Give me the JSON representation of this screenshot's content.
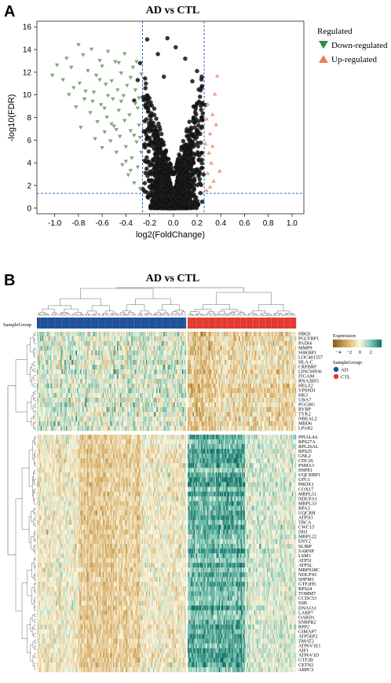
{
  "panel_a": {
    "letter": "A",
    "title": "AD vs CTL",
    "legend_title": "Regulated",
    "legend_items": [
      "Down-regulated",
      "Up-regulated"
    ],
    "colors": {
      "down": "#7fa878",
      "up": "#ef9e83",
      "ns": "#000000",
      "down_legend": "#2e8b3e",
      "up_legend": "#ef7d5c",
      "threshold": "#1f5fae"
    }
  },
  "panel_b": {
    "letter": "B",
    "title": "AD vs CTL",
    "annotation_label": "SampleGroup",
    "legend_expression_title": "Expression",
    "legend_expression_ticks": [
      "-4",
      "-2",
      "0",
      "2"
    ],
    "legend_group_title": "SampleGroup:",
    "legend_groups": [
      "AD",
      "CTL"
    ],
    "colors": {
      "AD": "#1e4f97",
      "CTL": "#e0382e",
      "low": "#8a5a12",
      "mid": "#fbf6df",
      "high": "#0f6f63"
    },
    "genes_top": [
      "HBQ1",
      "PGLYRP1",
      "PADI4",
      "MMP9",
      "SHKBP1",
      "LOC401357",
      "HLA-C",
      "CRFBRF",
      "LINC00936",
      "ITGAM",
      "RNA28S5",
      "HELZ2",
      "VPS9D1",
      "HK3",
      "UBA7",
      "PGGHG",
      "RYBP",
      "TYK2",
      "NBEAL2",
      "MBD6",
      "LPAR2"
    ],
    "genes_bottom": [
      "PPIAL4A",
      "RPS27A",
      "RPL26AL",
      "RPS25",
      "GNL2",
      "CDC26",
      "PSMA3",
      "HSPE1",
      "UQCRBP1",
      "UFC1",
      "PRDX1",
      "COX17",
      "MRPL51",
      "NDUFA1",
      "MRPL33",
      "RPA3",
      "UQCRH",
      "ATP5O",
      "TBCA",
      "CWC15",
      "DHJ",
      "MRPL22",
      "ENY2",
      "SLIRP",
      "SARNP",
      "LSM3",
      "ATP5J",
      "ATP5L",
      "MRPS18C",
      "NDUFS5",
      "SHFM1",
      "GTF2H5",
      "RPS24",
      "TOMM7",
      "CCDC53",
      "SSB",
      "DNAJA1",
      "LARP7",
      "OARD1",
      "SNRPB2",
      "RPP2",
      "GIMAP7",
      "ATP5EP2",
      "ZMAT2",
      "ATP6V1E1",
      "AIF1",
      "ATP6V1D",
      "GTF2B",
      "CETN2",
      "ARPC3"
    ]
  },
  "chart_data": [
    {
      "type": "scatter",
      "title": "AD vs CTL",
      "xlabel": "log2(FoldChange)",
      "ylabel": "-log10(FDR)",
      "xlim": [
        -1.15,
        1.1
      ],
      "ylim": [
        -0.5,
        16.5
      ],
      "xticks": [
        -1.0,
        -0.8,
        -0.6,
        -0.4,
        -0.2,
        0.0,
        0.2,
        0.4,
        0.6,
        0.8,
        1.0
      ],
      "yticks": [
        0,
        2,
        4,
        6,
        8,
        10,
        12,
        14,
        16
      ],
      "thresholds": {
        "x": [
          -0.26,
          0.26
        ],
        "y": 1.3
      },
      "legend": {
        "title": "Regulated",
        "position": "right"
      },
      "series": [
        {
          "name": "Down-regulated",
          "marker": "triangle-down",
          "points": [
            [
              -1.02,
              11.7
            ],
            [
              -0.98,
              12.6
            ],
            [
              -0.93,
              11.3
            ],
            [
              -0.9,
              13.2
            ],
            [
              -0.86,
              12.4
            ],
            [
              -0.84,
              10.6
            ],
            [
              -0.8,
              14.4
            ],
            [
              -0.79,
              11.0
            ],
            [
              -0.76,
              13.5
            ],
            [
              -0.75,
              9.6
            ],
            [
              -0.72,
              12.1
            ],
            [
              -0.7,
              8.4
            ],
            [
              -0.69,
              14.0
            ],
            [
              -0.67,
              10.2
            ],
            [
              -0.65,
              11.7
            ],
            [
              -0.64,
              7.6
            ],
            [
              -0.62,
              13.0
            ],
            [
              -0.61,
              9.1
            ],
            [
              -0.6,
              12.5
            ],
            [
              -0.58,
              6.7
            ],
            [
              -0.57,
              10.9
            ],
            [
              -0.56,
              8.0
            ],
            [
              -0.55,
              13.8
            ],
            [
              -0.53,
              5.9
            ],
            [
              -0.52,
              11.2
            ],
            [
              -0.51,
              9.6
            ],
            [
              -0.5,
              7.2
            ],
            [
              -0.49,
              12.9
            ],
            [
              -0.48,
              4.9
            ],
            [
              -0.47,
              10.4
            ],
            [
              -0.46,
              8.6
            ],
            [
              -0.45,
              6.3
            ],
            [
              -0.44,
              11.9
            ],
            [
              -0.43,
              3.8
            ],
            [
              -0.42,
              9.9
            ],
            [
              -0.41,
              7.7
            ],
            [
              -0.4,
              5.4
            ],
            [
              -0.39,
              10.8
            ],
            [
              -0.38,
              2.9
            ],
            [
              -0.37,
              8.2
            ],
            [
              -0.36,
              6.8
            ],
            [
              -0.35,
              4.4
            ],
            [
              -0.34,
              12.4
            ],
            [
              -0.33,
              2.2
            ],
            [
              -0.32,
              9.2
            ],
            [
              -0.31,
              5.8
            ],
            [
              -0.3,
              3.6
            ],
            [
              -0.29,
              7.3
            ],
            [
              -0.28,
              1.7
            ],
            [
              -0.27,
              4.9
            ],
            [
              -0.62,
              11.3
            ],
            [
              -0.68,
              9.4
            ],
            [
              -0.74,
              10.3
            ],
            [
              -0.55,
              9.9
            ],
            [
              -0.46,
              12.8
            ],
            [
              -0.41,
              13.6
            ],
            [
              -0.36,
              11.5
            ],
            [
              -0.32,
              10.4
            ],
            [
              -0.3,
              8.8
            ],
            [
              -0.28,
              6.2
            ],
            [
              -0.52,
              7.4
            ],
            [
              -0.58,
              8.8
            ],
            [
              -0.44,
              9.4
            ],
            [
              -0.48,
              6.9
            ],
            [
              -0.4,
              4.1
            ],
            [
              -0.36,
              3.3
            ],
            [
              -0.33,
              6.4
            ],
            [
              -0.29,
              9.7
            ],
            [
              -0.27,
              11.8
            ],
            [
              -0.31,
              12.9
            ],
            [
              -0.88,
              10.0
            ],
            [
              -0.82,
              8.9
            ],
            [
              -0.78,
              7.1
            ],
            [
              -0.66,
              6.1
            ],
            [
              -0.6,
              5.3
            ]
          ]
        },
        {
          "name": "Up-regulated",
          "marker": "triangle-up",
          "points": [
            [
              0.37,
              11.7
            ],
            [
              0.35,
              10.1
            ],
            [
              0.33,
              8.3
            ],
            [
              0.31,
              6.6
            ],
            [
              0.3,
              4.9
            ],
            [
              0.29,
              3.1
            ],
            [
              0.28,
              1.6
            ],
            [
              0.34,
              2.4
            ],
            [
              0.32,
              4.0
            ],
            [
              0.36,
              7.4
            ],
            [
              0.29,
              9.2
            ],
            [
              0.27,
              5.7
            ],
            [
              0.39,
              3.3
            ],
            [
              0.31,
              1.9
            ],
            [
              0.28,
              7.9
            ],
            [
              0.33,
              5.5
            ]
          ]
        },
        {
          "name": "Not significant",
          "marker": "circle",
          "density_note": "dense cloud of points between log2FC -0.26 and 0.26 forming a volcano shape",
          "points": [
            [
              -0.05,
              15.0
            ],
            [
              -0.22,
              14.9
            ],
            [
              0.02,
              14.2
            ],
            [
              -0.13,
              13.6
            ],
            [
              0.1,
              13.2
            ],
            [
              -0.28,
              12.8
            ],
            [
              0.2,
              12.1
            ],
            [
              -0.08,
              11.6
            ],
            [
              0.16,
              11.2
            ],
            [
              -0.3,
              11.3
            ],
            [
              0.23,
              10.4
            ],
            [
              -0.33,
              9.5
            ],
            [
              0.27,
              9.1
            ]
          ]
        }
      ]
    },
    {
      "type": "heatmap",
      "title": "AD vs CTL",
      "columns": {
        "groups": [
          "AD",
          "CTL"
        ],
        "counts": [
          145,
          104
        ]
      },
      "rows_top": 21,
      "rows_bottom": 50,
      "color_scale": {
        "min": -4,
        "max": 3,
        "ticks": [
          -4,
          -2,
          0,
          2
        ],
        "low": "#8a5a12",
        "mid": "#fbf6df",
        "high": "#0f6f63"
      },
      "pattern": "Top block genes higher in AD (teal) and lower in CTL (brown); bottom block genes higher in CTL (teal) and lower in AD (cream/brown)"
    }
  ]
}
